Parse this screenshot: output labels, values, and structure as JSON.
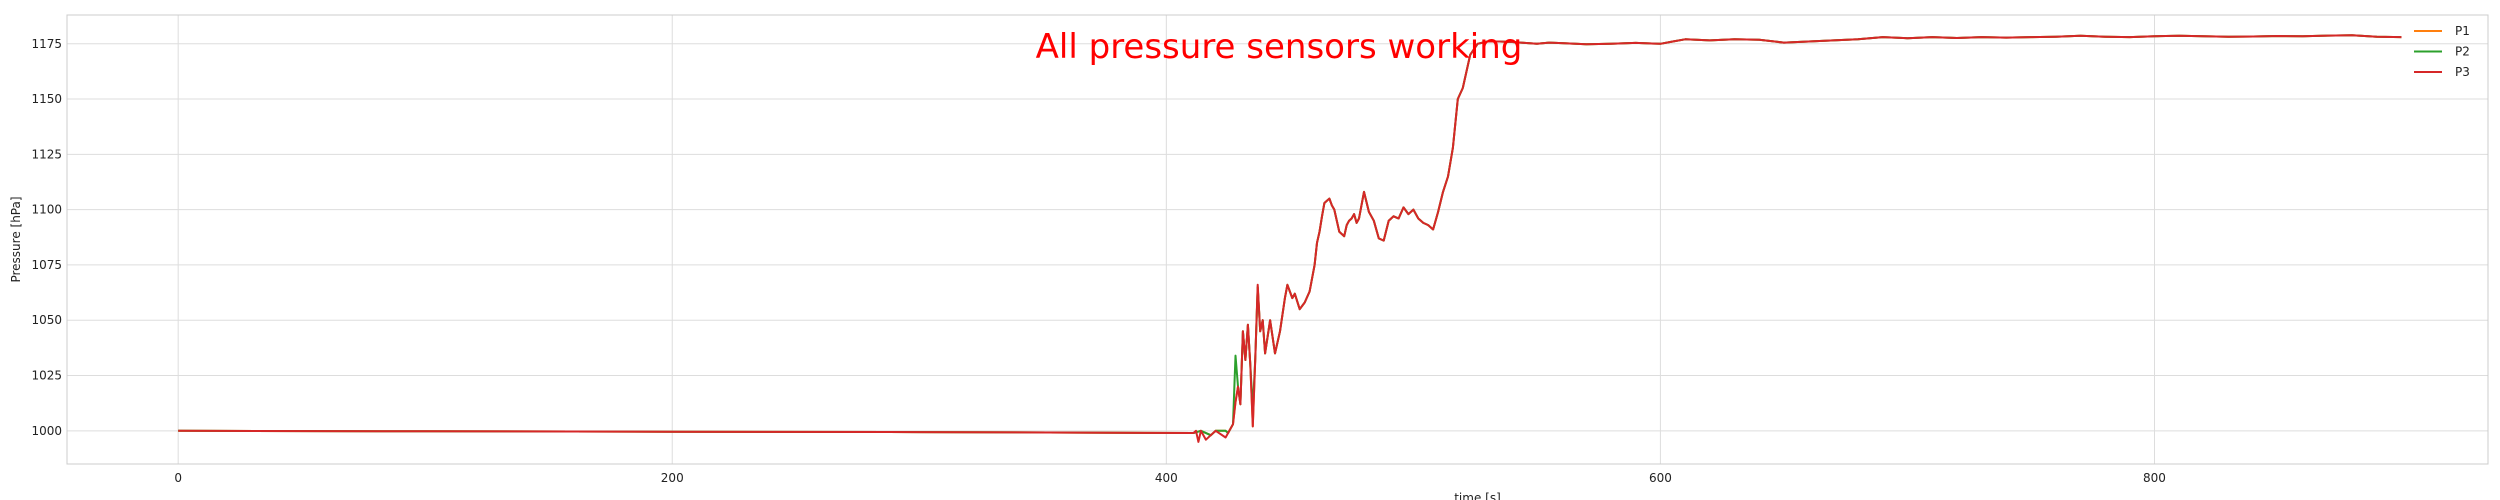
{
  "chart_data": {
    "type": "line",
    "title": "",
    "xlabel": "time [s]",
    "ylabel": "Pressure [hPa]",
    "xlim": [
      -45,
      935
    ],
    "ylim": [
      985,
      1188
    ],
    "xticks": [
      0,
      200,
      400,
      600,
      800
    ],
    "yticks": [
      1000,
      1025,
      1050,
      1075,
      1100,
      1125,
      1150,
      1175
    ],
    "grid": true,
    "legend_position": "top-right",
    "annotation": "All pressure sensors working",
    "series": [
      {
        "name": "P1",
        "color": "#ff7f0e",
        "x": [
          0,
          100,
          200,
          300,
          411,
          414,
          418,
          420,
          424,
          425,
          427,
          428,
          429,
          430,
          431,
          432,
          433,
          434,
          435,
          436,
          437,
          438,
          439,
          440,
          442,
          444,
          446,
          448,
          449,
          451,
          452,
          454,
          456,
          458,
          460,
          461,
          462,
          463,
          464,
          465,
          466,
          467,
          468,
          470,
          472,
          473,
          474,
          475,
          476,
          477,
          478,
          480,
          482,
          484,
          486,
          488,
          490,
          492,
          494,
          496,
          498,
          500,
          502,
          504,
          506,
          508,
          510,
          512,
          514,
          516,
          518,
          520,
          523,
          526,
          530,
          535,
          540,
          545,
          550,
          555,
          560,
          570,
          580,
          590,
          600,
          605,
          610,
          620,
          630,
          640,
          650,
          660,
          670,
          680,
          690,
          700,
          710,
          720,
          730,
          740,
          750,
          760,
          770,
          780,
          790,
          800,
          810,
          820,
          830,
          840,
          850,
          860,
          870,
          880,
          890,
          900
        ],
        "y": [
          1000,
          999.8,
          999.6,
          999.4,
          999,
          1000,
          998,
          1000,
          1000,
          999,
          1003,
          1013,
          1020,
          1012,
          1045,
          1032,
          1048,
          1030,
          1002,
          1033,
          1065,
          1045,
          1050,
          1035,
          1050,
          1035,
          1045,
          1060,
          1066,
          1060,
          1062,
          1055,
          1058,
          1063,
          1075,
          1085,
          1090,
          1097,
          1103,
          1104,
          1105,
          1102,
          1100,
          1090,
          1088,
          1093,
          1095,
          1096,
          1098,
          1094,
          1096,
          1108,
          1099,
          1095,
          1087,
          1086,
          1095,
          1097,
          1096,
          1101,
          1098,
          1100,
          1096,
          1094,
          1093,
          1091,
          1099,
          1108,
          1115,
          1128,
          1150,
          1155,
          1170,
          1175,
          1176,
          1176,
          1175.8,
          1175.4,
          1175,
          1175.5,
          1175.3,
          1174.8,
          1175,
          1175.4,
          1175,
          1176,
          1177,
          1176.5,
          1177,
          1176.8,
          1175.5,
          1176,
          1176.5,
          1177,
          1178,
          1177.5,
          1178,
          1177.6,
          1178,
          1177.8,
          1178,
          1178.2,
          1178.6,
          1178.2,
          1178,
          1178.4,
          1178.6,
          1178.4,
          1178.2,
          1178.3,
          1178.5,
          1178.4,
          1178.7,
          1178.8,
          1178.2,
          1178
        ]
      },
      {
        "name": "P2",
        "color": "#2ca02c",
        "x": [
          0,
          100,
          200,
          300,
          411,
          414,
          418,
          420,
          424,
          425,
          427,
          428,
          429,
          430,
          431,
          432,
          433,
          434,
          435,
          436,
          437,
          438,
          439,
          440,
          442,
          444,
          446,
          448,
          449,
          451,
          452,
          454,
          456,
          458,
          460,
          461,
          462,
          463,
          464,
          465,
          466,
          467,
          468,
          470,
          472,
          473,
          474,
          475,
          476,
          477,
          478,
          480,
          482,
          484,
          486,
          488,
          490,
          492,
          494,
          496,
          498,
          500,
          502,
          504,
          506,
          508,
          510,
          512,
          514,
          516,
          518,
          520,
          523,
          526,
          530,
          535,
          540,
          545,
          550,
          555,
          560,
          570,
          580,
          590,
          600,
          605,
          610,
          620,
          630,
          640,
          650,
          660,
          670,
          680,
          690,
          700,
          710,
          720,
          730,
          740,
          750,
          760,
          770,
          780,
          790,
          800,
          810,
          820,
          830,
          840,
          850,
          860,
          870,
          880,
          890,
          900
        ],
        "y": [
          1000,
          999.8,
          999.6,
          999.4,
          999,
          1000,
          998,
          1000,
          1000,
          999,
          1003,
          1034,
          1020,
          1012,
          1045,
          1032,
          1048,
          1030,
          1010,
          1033,
          1065,
          1045,
          1050,
          1035,
          1050,
          1035,
          1045,
          1060,
          1066,
          1060,
          1062,
          1055,
          1058,
          1063,
          1075,
          1085,
          1090,
          1097,
          1103,
          1104,
          1105,
          1102,
          1100,
          1090,
          1088,
          1093,
          1095,
          1096,
          1098,
          1094,
          1096,
          1108,
          1099,
          1095,
          1087,
          1086,
          1095,
          1097,
          1096,
          1101,
          1098,
          1100,
          1096,
          1094,
          1093,
          1091,
          1099,
          1108,
          1115,
          1128,
          1150,
          1155,
          1170,
          1175,
          1176,
          1176,
          1175.8,
          1175.4,
          1175,
          1175.5,
          1175.3,
          1174.8,
          1175,
          1175.4,
          1175,
          1176,
          1177,
          1176.5,
          1177,
          1176.8,
          1175.5,
          1176,
          1176.5,
          1177,
          1178,
          1177.5,
          1178,
          1177.6,
          1178,
          1177.8,
          1178,
          1178.2,
          1178.6,
          1178.2,
          1178,
          1178.4,
          1178.6,
          1178.4,
          1178.2,
          1178.3,
          1178.5,
          1178.4,
          1178.7,
          1178.8,
          1178.2,
          1178
        ]
      },
      {
        "name": "P3",
        "color": "#d62728",
        "x": [
          0,
          100,
          200,
          300,
          411,
          412,
          413,
          414,
          416,
          418,
          420,
          424,
          425,
          427,
          428,
          429,
          430,
          431,
          432,
          433,
          434,
          435,
          436,
          437,
          438,
          439,
          440,
          442,
          444,
          446,
          448,
          449,
          451,
          452,
          454,
          456,
          458,
          460,
          461,
          462,
          463,
          464,
          465,
          466,
          467,
          468,
          470,
          472,
          473,
          474,
          475,
          476,
          477,
          478,
          480,
          482,
          484,
          486,
          488,
          490,
          492,
          494,
          496,
          498,
          500,
          502,
          504,
          506,
          508,
          510,
          512,
          514,
          516,
          518,
          520,
          523,
          526,
          530,
          535,
          540,
          545,
          550,
          555,
          560,
          570,
          580,
          590,
          600,
          605,
          610,
          620,
          630,
          640,
          650,
          660,
          670,
          680,
          690,
          700,
          710,
          720,
          730,
          740,
          750,
          760,
          770,
          780,
          790,
          800,
          810,
          820,
          830,
          840,
          850,
          860,
          870,
          880,
          890,
          900
        ],
        "y": [
          1000,
          999.8,
          999.6,
          999.4,
          999,
          1000,
          995,
          1000,
          996,
          998,
          1000,
          997,
          999,
          1003,
          1013,
          1020,
          1012,
          1045,
          1032,
          1048,
          1030,
          1002,
          1033,
          1066,
          1045,
          1050,
          1035,
          1050,
          1035,
          1045,
          1060,
          1066,
          1060,
          1062,
          1055,
          1058,
          1063,
          1075,
          1085,
          1090,
          1097,
          1103,
          1104,
          1105,
          1102,
          1100,
          1090,
          1088,
          1093,
          1095,
          1096,
          1098,
          1094,
          1096,
          1108,
          1099,
          1095,
          1087,
          1086,
          1095,
          1097,
          1096,
          1101,
          1098,
          1100,
          1096,
          1094,
          1093,
          1091,
          1099,
          1108,
          1115,
          1128,
          1150,
          1155,
          1170,
          1175,
          1176,
          1176,
          1175.8,
          1175.4,
          1175,
          1175.5,
          1175.3,
          1174.8,
          1175,
          1175.4,
          1175,
          1176,
          1177,
          1176.5,
          1177,
          1176.8,
          1175.5,
          1176,
          1176.5,
          1177,
          1178,
          1177.5,
          1178,
          1177.6,
          1178,
          1177.8,
          1178,
          1178.2,
          1178.6,
          1178.2,
          1178,
          1178.4,
          1178.6,
          1178.4,
          1178.2,
          1178.3,
          1178.5,
          1178.4,
          1178.7,
          1178.8,
          1178.2,
          1178
        ]
      }
    ]
  }
}
